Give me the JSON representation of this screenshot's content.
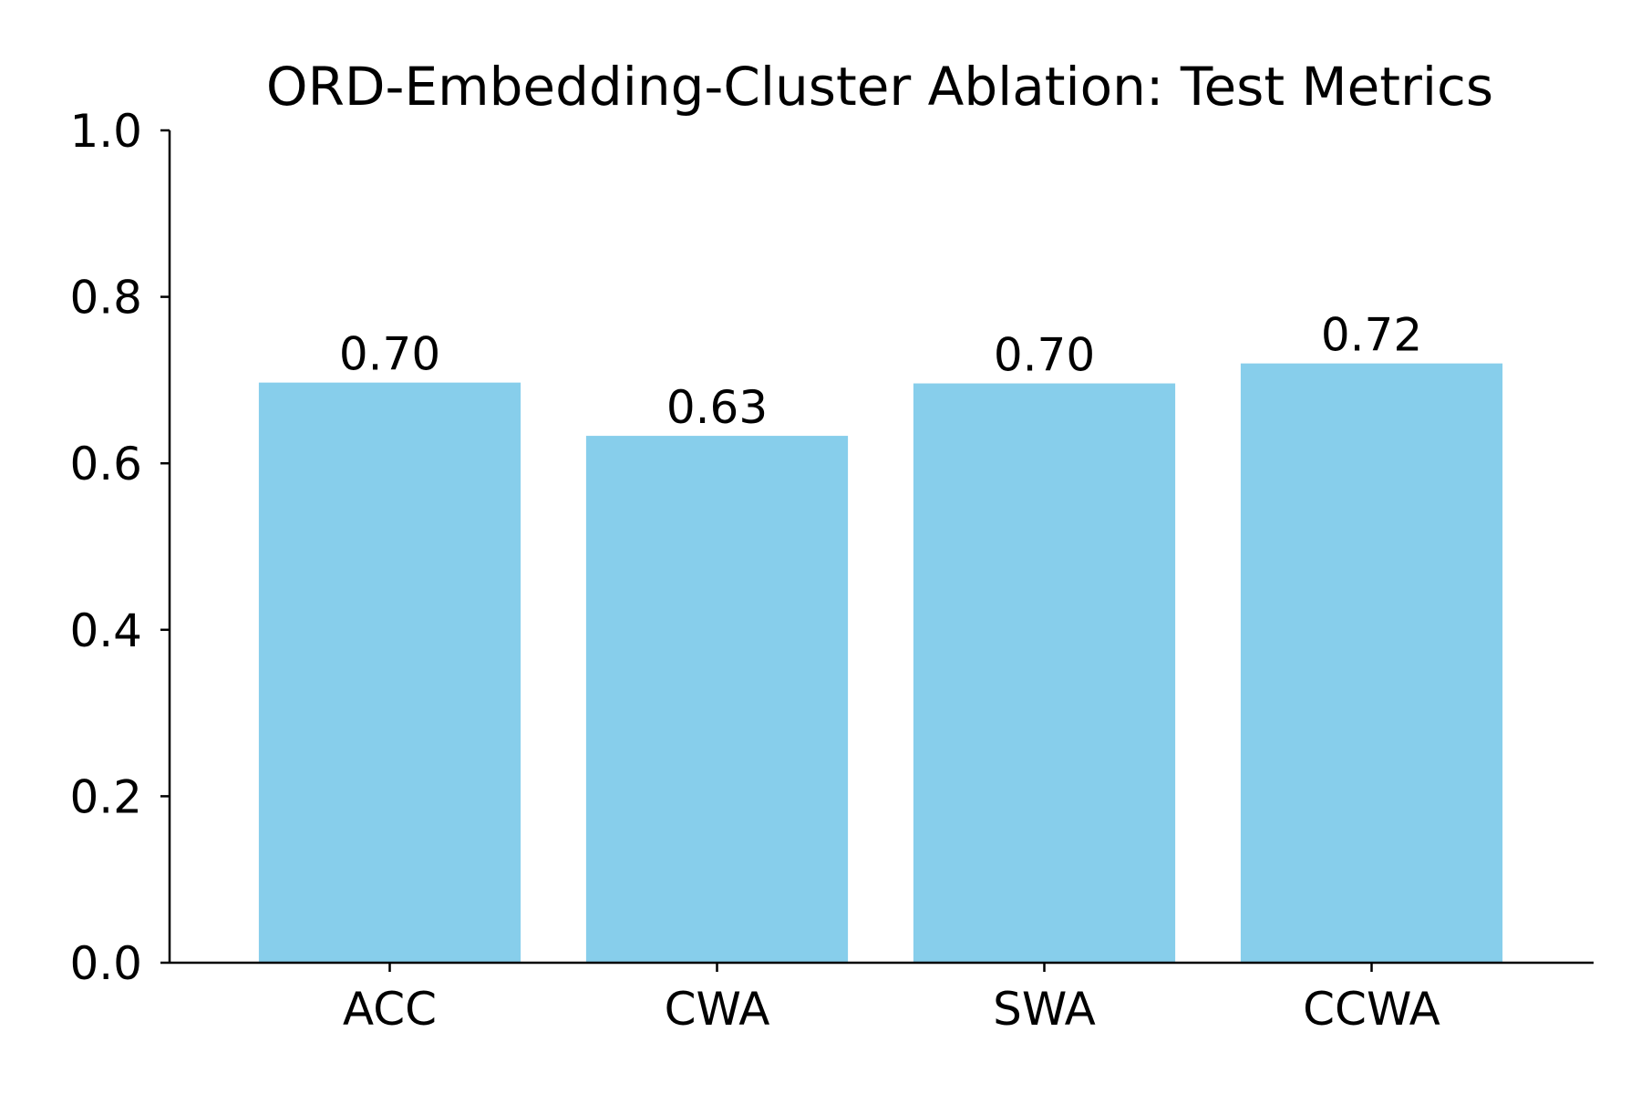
{
  "chart_data": {
    "type": "bar",
    "title": "ORD-Embedding-Cluster Ablation: Test Metrics",
    "xlabel": "",
    "ylabel": "",
    "categories": [
      "ACC",
      "CWA",
      "SWA",
      "CCWA"
    ],
    "values": [
      0.697,
      0.633,
      0.696,
      0.72
    ],
    "data_labels": [
      "0.70",
      "0.63",
      "0.70",
      "0.72"
    ],
    "ylim": [
      0,
      1.0
    ],
    "yticks": [
      0.0,
      0.2,
      0.4,
      0.6,
      0.8,
      1.0
    ],
    "ytick_labels": [
      "0.0",
      "0.2",
      "0.4",
      "0.6",
      "0.8",
      "1.0"
    ],
    "bar_color": "#87ceeb",
    "grid": false,
    "legend": "none"
  }
}
